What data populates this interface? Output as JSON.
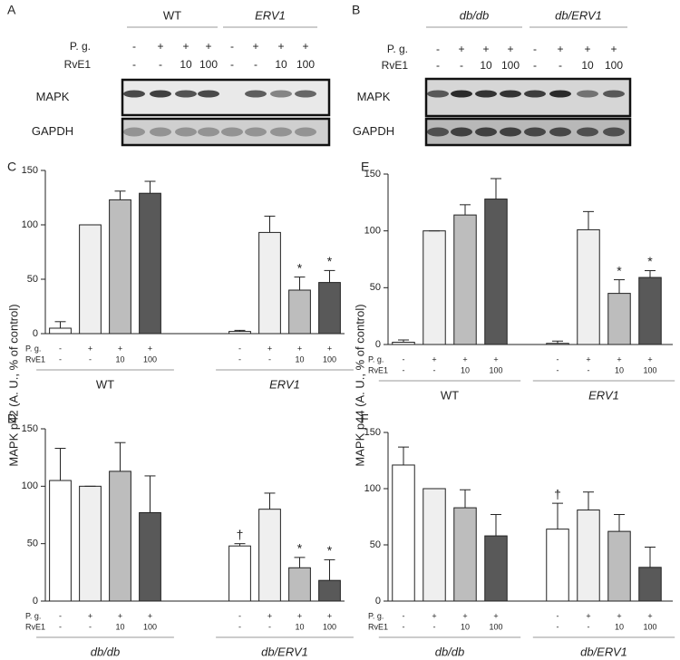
{
  "blots": [
    {
      "letter": "A",
      "groups": [
        "WT",
        "ERV1"
      ],
      "group_italic": [
        false,
        true
      ],
      "treatments": [
        {
          "name": "P. g.",
          "values": [
            "-",
            "+",
            "+",
            "+",
            "-",
            "+",
            "+",
            "+"
          ]
        },
        {
          "name": "RvE1",
          "values": [
            "-",
            "-",
            "10",
            "100",
            "-",
            "-",
            "10",
            "100"
          ]
        }
      ],
      "lanes": [
        "MAPK",
        "GAPDH"
      ]
    },
    {
      "letter": "B",
      "groups": [
        "db/db",
        "db/ERV1"
      ],
      "group_italic": [
        true,
        true
      ],
      "treatments": [
        {
          "name": "P. g.",
          "values": [
            "-",
            "+",
            "+",
            "+",
            "-",
            "+",
            "+",
            "+"
          ]
        },
        {
          "name": "RvE1",
          "values": [
            "-",
            "-",
            "10",
            "100",
            "-",
            "-",
            "10",
            "100"
          ]
        }
      ],
      "lanes": [
        "MAPK",
        "GAPDH"
      ]
    }
  ],
  "chart_data": [
    {
      "type": "bar",
      "letter": "C",
      "ylabel": "MAPK p42 (A. U., % of control)",
      "groups": [
        "WT",
        "ERV1"
      ],
      "group_italic": [
        false,
        true
      ],
      "treatments": [
        {
          "name": "P. g.",
          "values": [
            "-",
            "+",
            "+",
            "+",
            "-",
            "+",
            "+",
            "+"
          ]
        },
        {
          "name": "RvE1",
          "values": [
            "-",
            "-",
            "10",
            "100",
            "-",
            "-",
            "10",
            "100"
          ]
        }
      ],
      "values": [
        5,
        100,
        123,
        129,
        2,
        93,
        40,
        47
      ],
      "errors": [
        6,
        0,
        8,
        11,
        1,
        15,
        12,
        11
      ],
      "annotations": [
        null,
        null,
        null,
        null,
        null,
        null,
        "*",
        "*"
      ],
      "colors": [
        "#ffffff",
        "#efefef",
        "#bdbdbd",
        "#595959",
        "#ffffff",
        "#efefef",
        "#bdbdbd",
        "#595959"
      ],
      "ylim": [
        0,
        150
      ],
      "yticks": [
        0,
        50,
        100,
        150
      ]
    },
    {
      "type": "bar",
      "letter": "D",
      "groups": [
        "db/db",
        "db/ERV1"
      ],
      "group_italic": [
        true,
        true
      ],
      "treatments": [
        {
          "name": "P. g.",
          "values": [
            "-",
            "+",
            "+",
            "+",
            "-",
            "+",
            "+",
            "+"
          ]
        },
        {
          "name": "RvE1",
          "values": [
            "-",
            "-",
            "10",
            "100",
            "-",
            "-",
            "10",
            "100"
          ]
        }
      ],
      "values": [
        105,
        100,
        113,
        77,
        48,
        80,
        29,
        18
      ],
      "errors": [
        28,
        0,
        25,
        32,
        2,
        14,
        9,
        18
      ],
      "annotations": [
        null,
        null,
        null,
        null,
        "†",
        null,
        "*",
        "*"
      ],
      "colors": [
        "#ffffff",
        "#efefef",
        "#bdbdbd",
        "#595959",
        "#ffffff",
        "#efefef",
        "#bdbdbd",
        "#595959"
      ],
      "ylim": [
        0,
        150
      ],
      "yticks": [
        0,
        50,
        100,
        150
      ]
    },
    {
      "type": "bar",
      "letter": "E",
      "ylabel": "MAPK p44 (A. U., % of control)",
      "groups": [
        "WT",
        "ERV1"
      ],
      "group_italic": [
        false,
        true
      ],
      "treatments": [
        {
          "name": "P. g.",
          "values": [
            "-",
            "+",
            "+",
            "+",
            "-",
            "+",
            "+",
            "+"
          ]
        },
        {
          "name": "RvE1",
          "values": [
            "-",
            "-",
            "10",
            "100",
            "-",
            "-",
            "10",
            "100"
          ]
        }
      ],
      "values": [
        2,
        100,
        114,
        128,
        1,
        101,
        45,
        59
      ],
      "errors": [
        2,
        0,
        9,
        18,
        2,
        16,
        12,
        6
      ],
      "annotations": [
        null,
        null,
        null,
        null,
        null,
        null,
        "*",
        "*"
      ],
      "colors": [
        "#ffffff",
        "#efefef",
        "#bdbdbd",
        "#595959",
        "#ffffff",
        "#efefef",
        "#bdbdbd",
        "#595959"
      ],
      "ylim": [
        0,
        150
      ],
      "yticks": [
        0,
        50,
        100,
        150
      ]
    },
    {
      "type": "bar",
      "letter": "F",
      "groups": [
        "db/db",
        "db/ERV1"
      ],
      "group_italic": [
        true,
        true
      ],
      "treatments": [
        {
          "name": "P. g.",
          "values": [
            "-",
            "+",
            "+",
            "+",
            "-",
            "+",
            "+",
            "+"
          ]
        },
        {
          "name": "RvE1",
          "values": [
            "-",
            "-",
            "10",
            "100",
            "-",
            "-",
            "10",
            "100"
          ]
        }
      ],
      "values": [
        121,
        100,
        83,
        58,
        64,
        81,
        62,
        30
      ],
      "errors": [
        16,
        0,
        16,
        19,
        23,
        16,
        15,
        18
      ],
      "annotations": [
        null,
        null,
        null,
        null,
        "†",
        null,
        null,
        null
      ],
      "colors": [
        "#ffffff",
        "#efefef",
        "#bdbdbd",
        "#595959",
        "#ffffff",
        "#efefef",
        "#bdbdbd",
        "#595959"
      ],
      "ylim": [
        0,
        150
      ],
      "yticks": [
        0,
        50,
        100,
        150
      ]
    }
  ]
}
